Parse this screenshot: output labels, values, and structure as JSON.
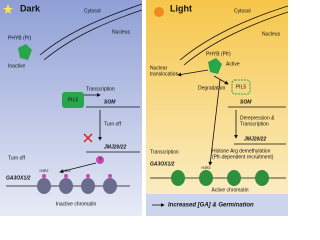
{
  "panels": {
    "dark": {
      "title": "Dark",
      "cytosol": "Cytosol",
      "nucleus": "Nucleus",
      "phyb": "PHYB (Pr)",
      "phyb_state": "Inactive",
      "pil5": "PIL5",
      "transcription": "Transcription",
      "som": "SOM",
      "turn_off_1": "Turn off",
      "jmj": "JMJ20/22",
      "unknown": "?",
      "turn_off_2": "Turn off",
      "gene": "GA3OX1/2",
      "histone_1": "H3R2",
      "histone_2": "H4R3",
      "chromatin": "Inactive chromatin"
    },
    "light": {
      "title": "Light",
      "cytosol": "Cytosol",
      "nucleus": "Nucleus",
      "translocation": [
        "Nuclear",
        "translocation"
      ],
      "phyb": "PHYB (Pfr)",
      "phyb_state": "Active",
      "degradation": "Degradation",
      "pil5": "PIL5",
      "som": "SOM",
      "derepression": [
        "Derepression &",
        "Transcription"
      ],
      "jmj": "JMJ20/22",
      "demethylation": [
        "Histone Arg demethylation",
        "(Pfr-dependent recruitment)"
      ],
      "transcription": "Transcription",
      "gene": "GA3OX1/2",
      "histone": "H3R2",
      "chromatin": "Active chromatin",
      "outcome": "Increased [GA] & Germination"
    }
  }
}
